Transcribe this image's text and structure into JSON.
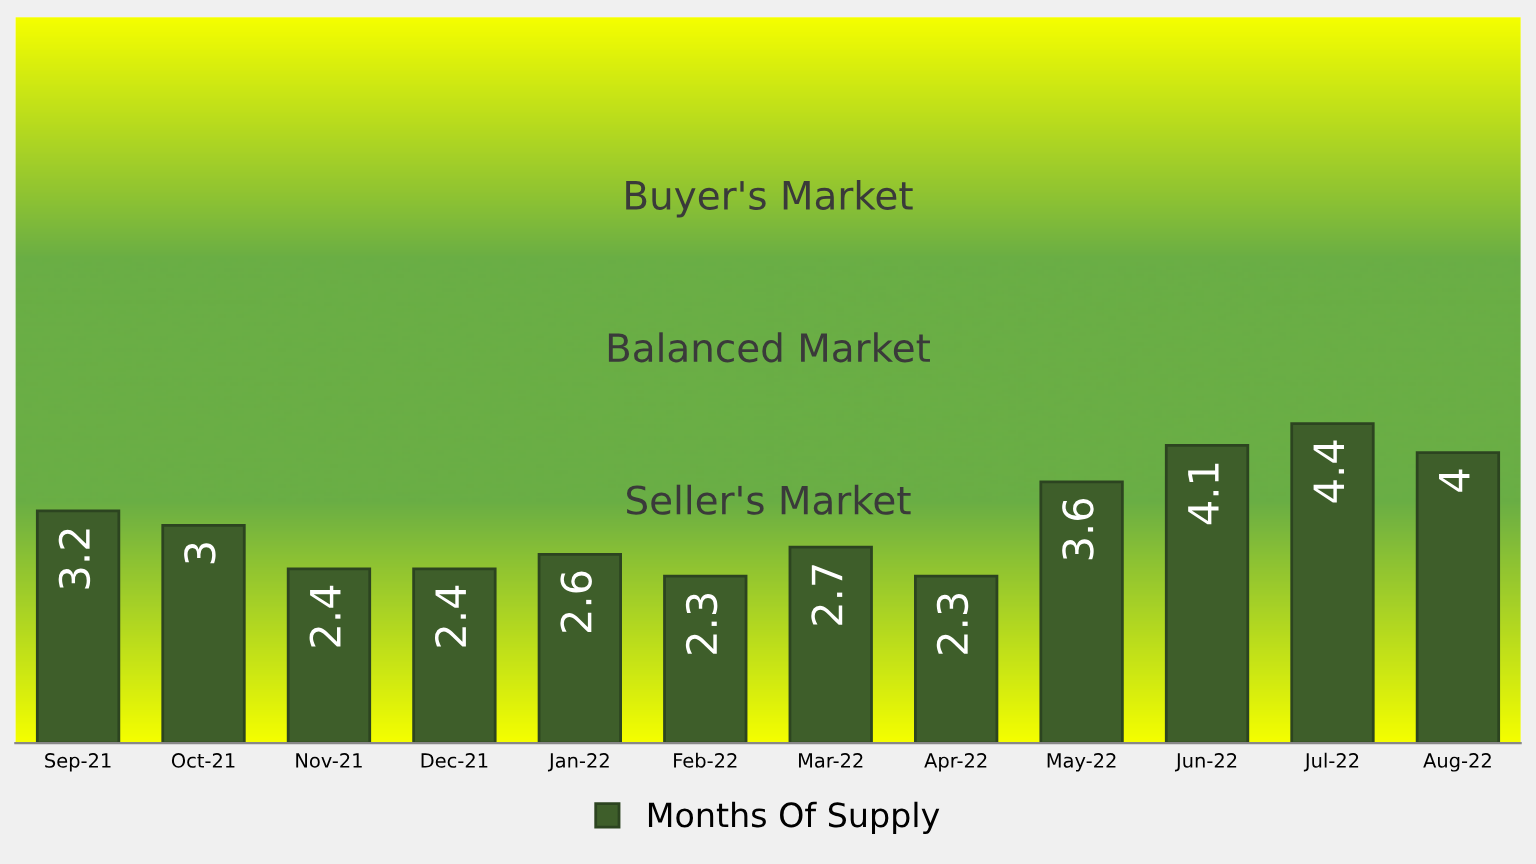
{
  "chart_data": {
    "type": "bar",
    "categories": [
      "Sep-21",
      "Oct-21",
      "Nov-21",
      "Dec-21",
      "Jan-22",
      "Feb-22",
      "Mar-22",
      "Apr-22",
      "May-22",
      "Jun-22",
      "Jul-22",
      "Aug-22"
    ],
    "series": [
      {
        "name": "Months Of Supply",
        "color": "#3e5e2a",
        "values": [
          3.2,
          3,
          2.4,
          2.4,
          2.6,
          2.3,
          2.7,
          2.3,
          3.6,
          4.1,
          4.4,
          4
        ]
      }
    ],
    "ylim": [
      0,
      10
    ],
    "tick_labels": "x",
    "data_labels": true,
    "legend": "bottom",
    "grid": false,
    "annotations": [
      "Buyer's Market",
      "Balanced Market",
      "Seller's Market"
    ]
  }
}
